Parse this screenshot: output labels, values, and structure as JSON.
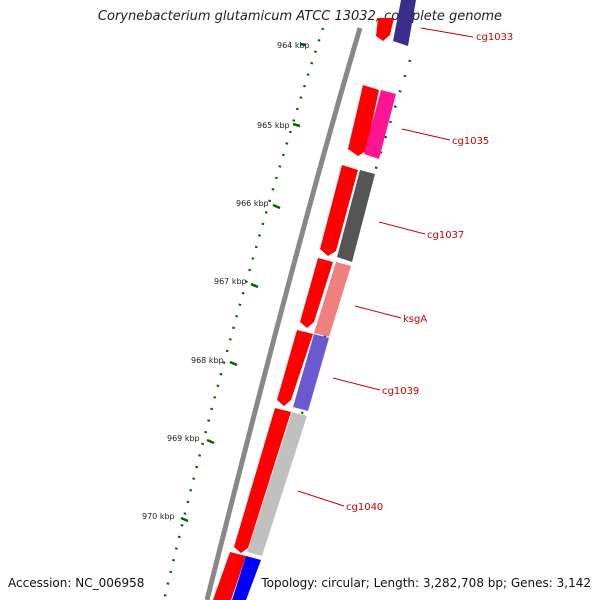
{
  "title": "Corynebacterium glutamicum ATCC 13032, complete genome",
  "accession_text": "Accession: NC_006958",
  "summary_text": "Topology: circular; Length: 3,282,708 bp; Genes: 3,142",
  "colors": {
    "backbone": "#888888",
    "forward_strand": "#ff0000",
    "tick": "#006400",
    "label": "#cc0000",
    "gene_cg1033": "#3a2e8c",
    "gene_cg1035": "#ff1493",
    "gene_cg1037": "#555555",
    "gene_ksgA": "#f08080",
    "gene_cg1039": "#6a5acd",
    "gene_cg1040": "#c0c0c0",
    "gene_next": "#0000ff"
  },
  "kbp_labels": [
    "964 kbp",
    "965 kbp",
    "966 kbp",
    "967 kbp",
    "968 kbp",
    "969 kbp",
    "970 kbp"
  ],
  "gene_labels": [
    "cg1033",
    "cg1035",
    "cg1037",
    "ksgA",
    "cg1039",
    "cg1040"
  ]
}
